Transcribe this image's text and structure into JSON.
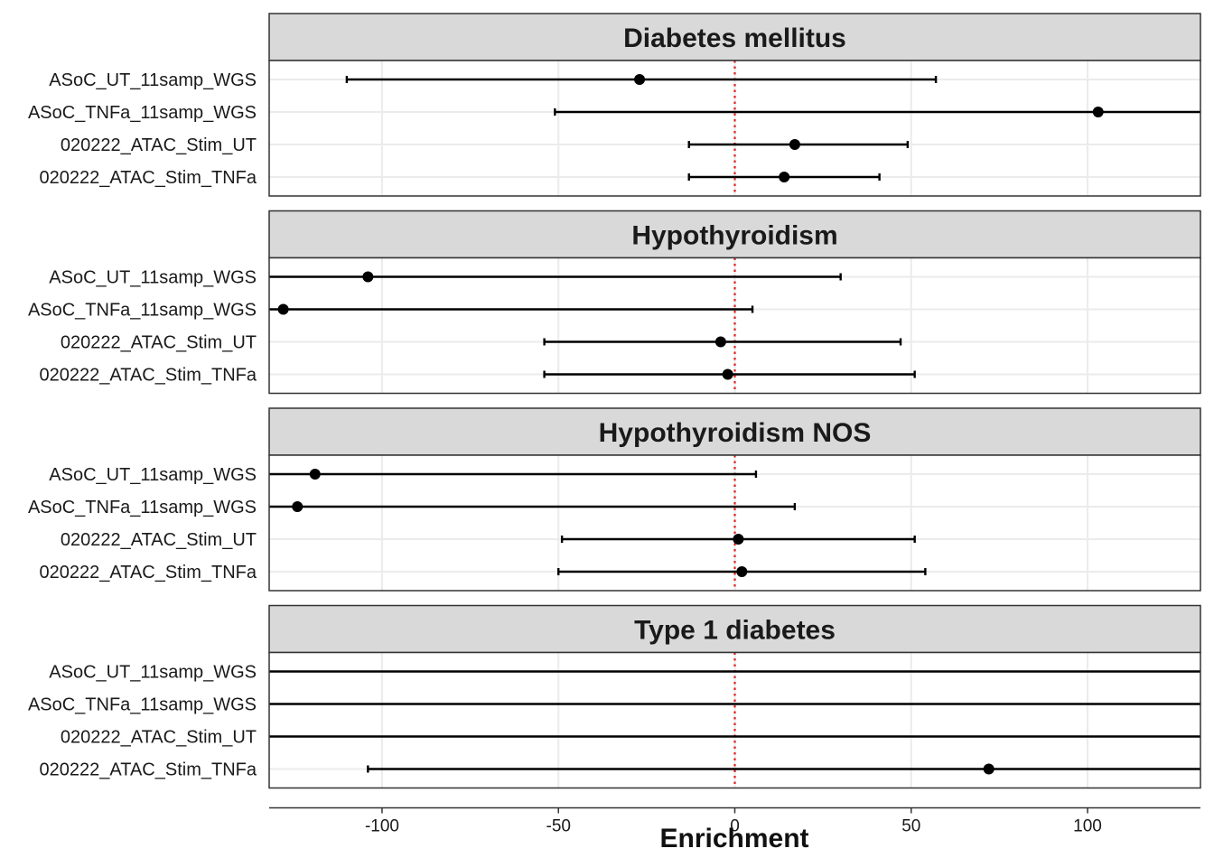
{
  "chart_data": {
    "type": "forest-facet",
    "xlabel": "Enrichment",
    "xlim": [
      -132,
      132
    ],
    "x_ticks": [
      -100,
      -50,
      0,
      50,
      100
    ],
    "x_tick_labels": [
      "-100",
      "-50",
      "0",
      "50",
      "100"
    ],
    "reference_line": 0,
    "categories": [
      "ASoC_UT_11samp_WGS",
      "ASoC_TNFa_11samp_WGS",
      "020222_ATAC_Stim_UT",
      "020222_ATAC_Stim_TNFa"
    ],
    "colors": {
      "strip_bg": "#d9d9d9",
      "panel_border": "#333333",
      "grid": "#ebebeb",
      "point": "#000000",
      "ref_line": "#e02020"
    },
    "panels": [
      {
        "title": "Diabetes mellitus",
        "rows": [
          {
            "category": "ASoC_UT_11samp_WGS",
            "estimate": -27,
            "lower": -110,
            "upper": 57
          },
          {
            "category": "ASoC_TNFa_11samp_WGS",
            "estimate": 103,
            "lower": -51,
            "upper": 140
          },
          {
            "category": "020222_ATAC_Stim_UT",
            "estimate": 17,
            "lower": -13,
            "upper": 49
          },
          {
            "category": "020222_ATAC_Stim_TNFa",
            "estimate": 14,
            "lower": -13,
            "upper": 41
          }
        ]
      },
      {
        "title": "Hypothyroidism",
        "rows": [
          {
            "category": "ASoC_UT_11samp_WGS",
            "estimate": -104,
            "lower": -135,
            "upper": 30
          },
          {
            "category": "ASoC_TNFa_11samp_WGS",
            "estimate": -128,
            "lower": -135,
            "upper": 5
          },
          {
            "category": "020222_ATAC_Stim_UT",
            "estimate": -4,
            "lower": -54,
            "upper": 47
          },
          {
            "category": "020222_ATAC_Stim_TNFa",
            "estimate": -2,
            "lower": -54,
            "upper": 51
          }
        ]
      },
      {
        "title": "Hypothyroidism NOS",
        "rows": [
          {
            "category": "ASoC_UT_11samp_WGS",
            "estimate": -119,
            "lower": -135,
            "upper": 6
          },
          {
            "category": "ASoC_TNFa_11samp_WGS",
            "estimate": -124,
            "lower": -135,
            "upper": 17
          },
          {
            "category": "020222_ATAC_Stim_UT",
            "estimate": 1,
            "lower": -49,
            "upper": 51
          },
          {
            "category": "020222_ATAC_Stim_TNFa",
            "estimate": 2,
            "lower": -50,
            "upper": 54
          }
        ]
      },
      {
        "title": "Type 1 diabetes",
        "rows": [
          {
            "category": "ASoC_UT_11samp_WGS",
            "estimate": null,
            "lower": -140,
            "upper": 140
          },
          {
            "category": "ASoC_TNFa_11samp_WGS",
            "estimate": null,
            "lower": -140,
            "upper": 140
          },
          {
            "category": "020222_ATAC_Stim_UT",
            "estimate": null,
            "lower": -140,
            "upper": 140
          },
          {
            "category": "020222_ATAC_Stim_TNFa",
            "estimate": 72,
            "lower": -104,
            "upper": 140
          }
        ]
      }
    ]
  }
}
